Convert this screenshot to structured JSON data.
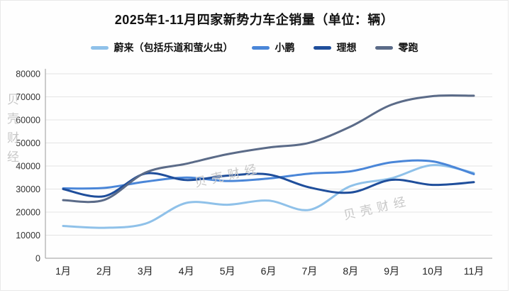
{
  "title": "2025年1-11月四家新势力车企销量（单位：辆）",
  "watermark": "贝壳财经",
  "axis": {
    "y_tick_labels": [
      "80000",
      "70000",
      "60000",
      "50000",
      "40000",
      "30000",
      "20000",
      "10000",
      "0"
    ],
    "x_tick_labels": [
      "1月",
      "2月",
      "3月",
      "4月",
      "5月",
      "6月",
      "7月",
      "8月",
      "9月",
      "10月",
      "11月"
    ]
  },
  "legend": {
    "items": [
      "蔚来（包括乐道和萤火虫）",
      "小鹏",
      "理想",
      "零跑"
    ]
  },
  "colors": {
    "weilai": "#8fc1e9",
    "xiaopeng": "#4a86d8",
    "lixiang": "#1f4e9b",
    "lingpao": "#5b6b88",
    "grid": "#e4e4e4",
    "axis_line": "#9a9a9a",
    "watermark": "#c7c7c7"
  },
  "chart_data": {
    "type": "line",
    "title": "2025年1-11月四家新势力车企销量（单位：辆）",
    "xlabel": "",
    "ylabel": "",
    "categories": [
      "1月",
      "2月",
      "3月",
      "4月",
      "5月",
      "6月",
      "7月",
      "8月",
      "9月",
      "10月",
      "11月"
    ],
    "series": [
      {
        "name": "蔚来（包括乐道和萤火虫）",
        "color": "#8fc1e9",
        "values": [
          14000,
          13200,
          15000,
          24000,
          23200,
          25000,
          21000,
          31300,
          34700,
          40400,
          37000
        ]
      },
      {
        "name": "小鹏",
        "color": "#4a86d8",
        "values": [
          30300,
          30500,
          33200,
          35000,
          33500,
          34600,
          36700,
          37700,
          41600,
          42000,
          36500
        ]
      },
      {
        "name": "理想",
        "color": "#1f4e9b",
        "values": [
          30000,
          26900,
          36700,
          33900,
          35800,
          36300,
          30700,
          28500,
          34000,
          31800,
          33000
        ]
      },
      {
        "name": "零跑",
        "color": "#5b6b88",
        "values": [
          25200,
          25300,
          37100,
          41000,
          45100,
          48000,
          50100,
          57100,
          66600,
          70300,
          70500
        ]
      }
    ],
    "ylim": [
      0,
      80000
    ],
    "ytick_step": 10000,
    "grid": true,
    "legend_position": "top"
  }
}
